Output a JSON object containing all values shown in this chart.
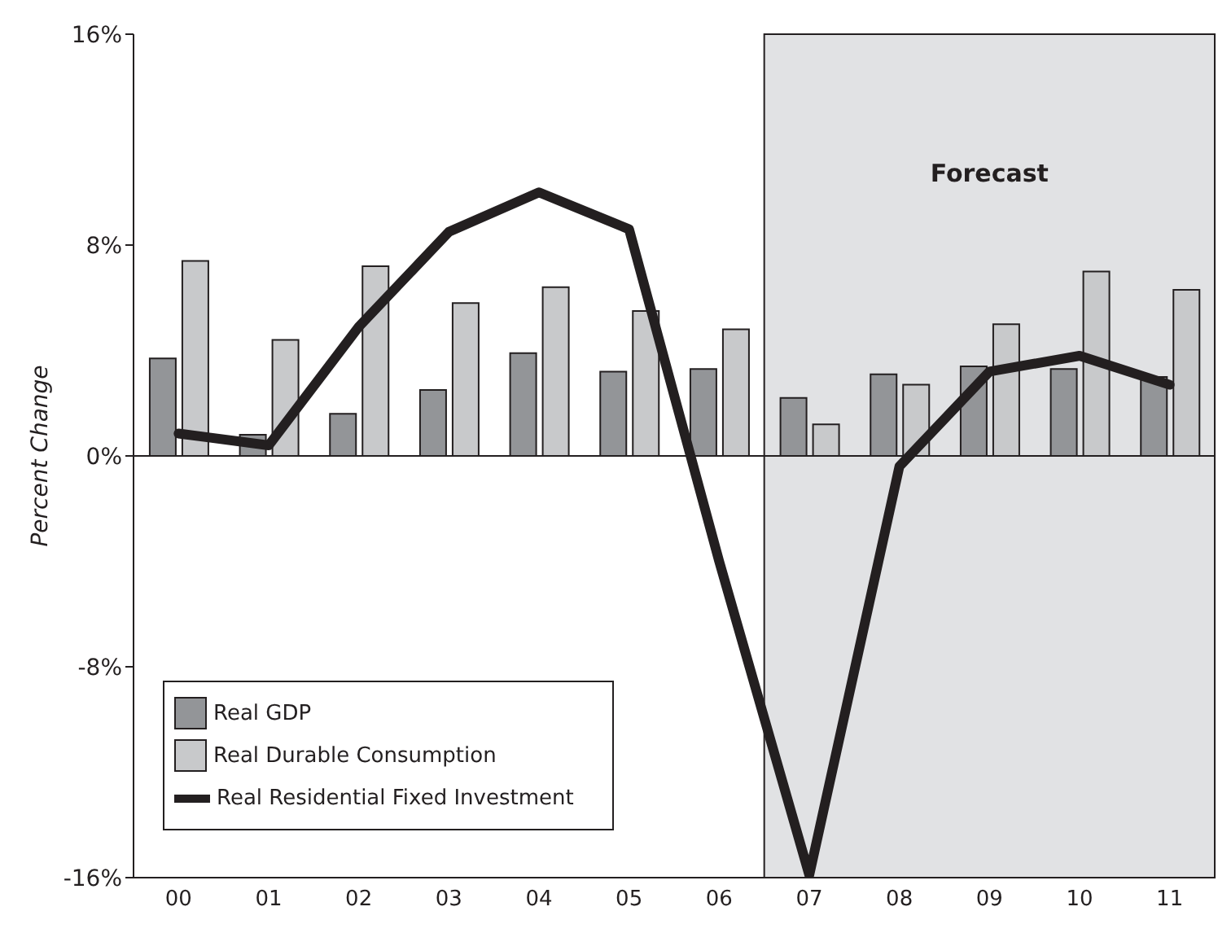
{
  "chart_data": {
    "type": "bar",
    "ylabel": "Percent Change",
    "categories": [
      "00",
      "01",
      "02",
      "03",
      "04",
      "05",
      "06",
      "07",
      "08",
      "09",
      "10",
      "11"
    ],
    "series": [
      {
        "name": "Real GDP",
        "color": "#939598",
        "values": [
          3.7,
          0.8,
          1.6,
          2.5,
          3.9,
          3.2,
          3.3,
          2.2,
          3.1,
          3.4,
          3.3,
          3.0
        ]
      },
      {
        "name": "Real Durable Consumption",
        "color": "#c8c9cb",
        "values": [
          7.4,
          4.4,
          7.2,
          5.8,
          6.4,
          5.5,
          4.8,
          1.2,
          2.7,
          5.0,
          7.0,
          6.3
        ]
      },
      {
        "name": "Real Residential Fixed Investment",
        "type": "line",
        "color": "#231f20",
        "values": [
          0.85,
          0.4,
          4.9,
          8.5,
          10.0,
          8.6,
          -4.0,
          -15.9,
          -0.4,
          3.2,
          3.8,
          2.7
        ]
      }
    ],
    "ylim": [
      -16,
      16
    ],
    "yticks": [
      {
        "value": -16,
        "label": "-16%"
      },
      {
        "value": -8,
        "label": "-8%"
      },
      {
        "value": 0,
        "label": "0%"
      },
      {
        "value": 8,
        "label": "8%"
      },
      {
        "value": 16,
        "label": "16%"
      }
    ],
    "bands": [
      {
        "axis": "x",
        "from": "07",
        "to": "11",
        "label": "Forecast",
        "color": "#e1e2e4"
      }
    ],
    "ref_lines": [
      {
        "axis": "y",
        "value": 0,
        "color": "#231f20"
      }
    ],
    "grid": false,
    "legend": "bottom left",
    "marker": "none",
    "line_style": "solid"
  }
}
